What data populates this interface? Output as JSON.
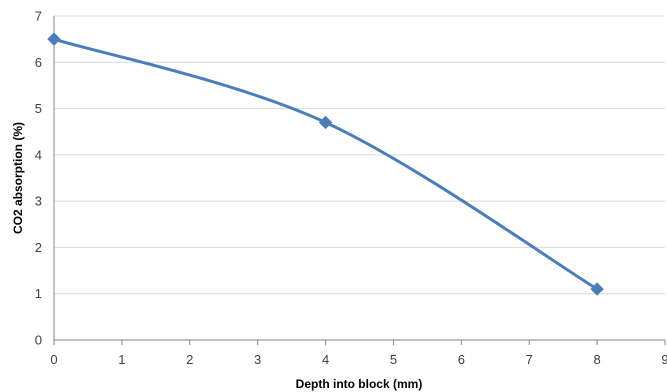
{
  "chart_data": {
    "type": "line",
    "xlabel": "Depth into block (mm)",
    "ylabel": "CO2 absorption (%)",
    "xlim": [
      0,
      9
    ],
    "ylim": [
      0,
      7
    ],
    "x_ticks": [
      "0",
      "1",
      "2",
      "3",
      "4",
      "5",
      "6",
      "7",
      "8",
      "9"
    ],
    "y_ticks": [
      "0",
      "1",
      "2",
      "3",
      "4",
      "5",
      "6",
      "7"
    ],
    "grid": "horizontal",
    "legend": "none",
    "smooth": true,
    "marker": "diamond",
    "series": [
      {
        "color": "#4a7ebb",
        "points": [
          {
            "x": 0,
            "y": 6.5
          },
          {
            "x": 4,
            "y": 4.7
          },
          {
            "x": 8,
            "y": 1.1
          }
        ]
      }
    ]
  }
}
